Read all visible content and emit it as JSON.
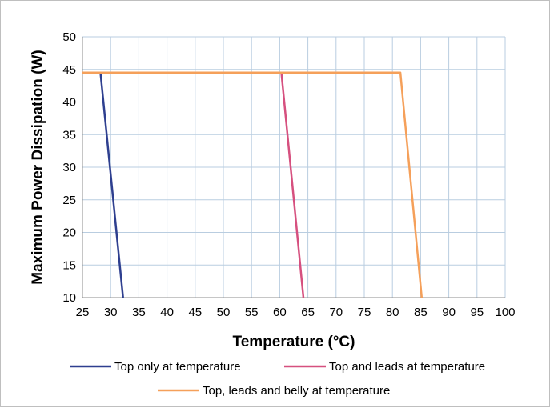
{
  "chart_data": {
    "type": "line",
    "title": "",
    "xlabel": "Temperature (°C)",
    "ylabel": "Maximum Power Dissipation (W)",
    "xlim": [
      25,
      100
    ],
    "ylim": [
      10,
      50
    ],
    "xticks": [
      25,
      30,
      35,
      40,
      45,
      50,
      55,
      60,
      65,
      70,
      75,
      80,
      85,
      90,
      95,
      100
    ],
    "yticks": [
      10,
      15,
      20,
      25,
      30,
      35,
      40,
      45,
      50
    ],
    "grid": true,
    "legend_position": "bottom",
    "series": [
      {
        "name": "Top only at temperature",
        "color": "#2e3f8f",
        "x": [
          28.2,
          32.2
        ],
        "y": [
          44.5,
          10
        ]
      },
      {
        "name": "Top and leads at temperature",
        "color": "#d6507f",
        "x": [
          25,
          60.3,
          64.2
        ],
        "y": [
          44.5,
          44.5,
          10
        ]
      },
      {
        "name": "Top, leads and belly at temperature",
        "color": "#f5a05a",
        "x": [
          25,
          81.4,
          85.2
        ],
        "y": [
          44.5,
          44.5,
          10
        ]
      }
    ]
  }
}
